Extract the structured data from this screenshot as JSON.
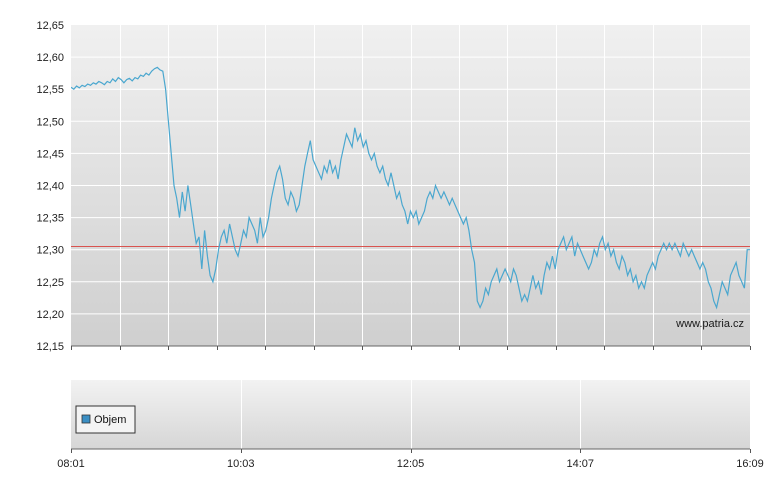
{
  "watermark": "www.patria.cz",
  "colors": {
    "price_line": "#4aa7cf",
    "reference_line": "#d9534f",
    "legend_swatch": "#3b8fc4",
    "grid": "#ffffff",
    "plot_bg_top": "#f0f0f0",
    "plot_bg_bottom": "#cfcfcf"
  },
  "chart_data": [
    {
      "type": "line",
      "name": "price",
      "title": "",
      "xlabel": "",
      "ylabel": "",
      "ylim": [
        12.15,
        12.65
      ],
      "yticks": [
        "12,65",
        "12,60",
        "12,55",
        "12,50",
        "12,45",
        "12,40",
        "12,35",
        "12,30",
        "12,25",
        "12,20",
        "12,15"
      ],
      "ytick_values": [
        12.65,
        12.6,
        12.55,
        12.5,
        12.45,
        12.4,
        12.35,
        12.3,
        12.25,
        12.2,
        12.15
      ],
      "reference_line": 12.305,
      "grid": true,
      "series": [
        {
          "values": [
            [
              0,
              12.553
            ],
            [
              2,
              12.55
            ],
            [
              4,
              12.555
            ],
            [
              6,
              12.552
            ],
            [
              8,
              12.556
            ],
            [
              10,
              12.554
            ],
            [
              12,
              12.558
            ],
            [
              14,
              12.556
            ],
            [
              16,
              12.56
            ],
            [
              18,
              12.558
            ],
            [
              20,
              12.562
            ],
            [
              22,
              12.56
            ],
            [
              24,
              12.557
            ],
            [
              26,
              12.562
            ],
            [
              28,
              12.56
            ],
            [
              30,
              12.566
            ],
            [
              32,
              12.562
            ],
            [
              34,
              12.568
            ],
            [
              36,
              12.565
            ],
            [
              38,
              12.56
            ],
            [
              40,
              12.565
            ],
            [
              42,
              12.567
            ],
            [
              44,
              12.563
            ],
            [
              46,
              12.568
            ],
            [
              48,
              12.566
            ],
            [
              50,
              12.572
            ],
            [
              52,
              12.57
            ],
            [
              54,
              12.575
            ],
            [
              56,
              12.572
            ],
            [
              58,
              12.578
            ],
            [
              60,
              12.582
            ],
            [
              62,
              12.584
            ],
            [
              64,
              12.58
            ],
            [
              66,
              12.578
            ],
            [
              68,
              12.55
            ],
            [
              70,
              12.5
            ],
            [
              72,
              12.45
            ],
            [
              74,
              12.4
            ],
            [
              76,
              12.38
            ],
            [
              78,
              12.35
            ],
            [
              80,
              12.39
            ],
            [
              82,
              12.36
            ],
            [
              84,
              12.4
            ],
            [
              86,
              12.37
            ],
            [
              88,
              12.34
            ],
            [
              90,
              12.31
            ],
            [
              92,
              12.32
            ],
            [
              94,
              12.27
            ],
            [
              96,
              12.33
            ],
            [
              98,
              12.29
            ],
            [
              100,
              12.26
            ],
            [
              102,
              12.25
            ],
            [
              104,
              12.27
            ],
            [
              106,
              12.3
            ],
            [
              108,
              12.32
            ],
            [
              110,
              12.33
            ],
            [
              112,
              12.31
            ],
            [
              114,
              12.34
            ],
            [
              116,
              12.32
            ],
            [
              118,
              12.3
            ],
            [
              120,
              12.29
            ],
            [
              122,
              12.31
            ],
            [
              124,
              12.33
            ],
            [
              126,
              12.32
            ],
            [
              128,
              12.35
            ],
            [
              130,
              12.34
            ],
            [
              132,
              12.33
            ],
            [
              134,
              12.31
            ],
            [
              136,
              12.35
            ],
            [
              138,
              12.32
            ],
            [
              140,
              12.33
            ],
            [
              142,
              12.35
            ],
            [
              144,
              12.38
            ],
            [
              146,
              12.4
            ],
            [
              148,
              12.42
            ],
            [
              150,
              12.43
            ],
            [
              152,
              12.41
            ],
            [
              154,
              12.38
            ],
            [
              156,
              12.37
            ],
            [
              158,
              12.39
            ],
            [
              160,
              12.38
            ],
            [
              162,
              12.36
            ],
            [
              164,
              12.37
            ],
            [
              166,
              12.4
            ],
            [
              168,
              12.43
            ],
            [
              170,
              12.45
            ],
            [
              172,
              12.47
            ],
            [
              174,
              12.44
            ],
            [
              176,
              12.43
            ],
            [
              178,
              12.42
            ],
            [
              180,
              12.41
            ],
            [
              182,
              12.43
            ],
            [
              184,
              12.42
            ],
            [
              186,
              12.44
            ],
            [
              188,
              12.42
            ],
            [
              190,
              12.43
            ],
            [
              192,
              12.41
            ],
            [
              194,
              12.44
            ],
            [
              196,
              12.46
            ],
            [
              198,
              12.48
            ],
            [
              200,
              12.47
            ],
            [
              202,
              12.46
            ],
            [
              204,
              12.49
            ],
            [
              206,
              12.47
            ],
            [
              208,
              12.48
            ],
            [
              210,
              12.46
            ],
            [
              212,
              12.47
            ],
            [
              214,
              12.45
            ],
            [
              216,
              12.44
            ],
            [
              218,
              12.45
            ],
            [
              220,
              12.43
            ],
            [
              222,
              12.42
            ],
            [
              224,
              12.43
            ],
            [
              226,
              12.41
            ],
            [
              228,
              12.4
            ],
            [
              230,
              12.42
            ],
            [
              232,
              12.4
            ],
            [
              234,
              12.38
            ],
            [
              236,
              12.39
            ],
            [
              238,
              12.37
            ],
            [
              240,
              12.36
            ],
            [
              242,
              12.34
            ],
            [
              244,
              12.36
            ],
            [
              246,
              12.35
            ],
            [
              248,
              12.36
            ],
            [
              250,
              12.34
            ],
            [
              252,
              12.35
            ],
            [
              254,
              12.36
            ],
            [
              256,
              12.38
            ],
            [
              258,
              12.39
            ],
            [
              260,
              12.38
            ],
            [
              262,
              12.4
            ],
            [
              264,
              12.39
            ],
            [
              266,
              12.38
            ],
            [
              268,
              12.39
            ],
            [
              270,
              12.38
            ],
            [
              272,
              12.37
            ],
            [
              274,
              12.38
            ],
            [
              276,
              12.37
            ],
            [
              278,
              12.36
            ],
            [
              280,
              12.35
            ],
            [
              282,
              12.34
            ],
            [
              284,
              12.35
            ],
            [
              286,
              12.33
            ],
            [
              288,
              12.3
            ],
            [
              290,
              12.28
            ],
            [
              292,
              12.22
            ],
            [
              294,
              12.21
            ],
            [
              296,
              12.22
            ],
            [
              298,
              12.24
            ],
            [
              300,
              12.23
            ],
            [
              302,
              12.25
            ],
            [
              304,
              12.26
            ],
            [
              306,
              12.27
            ],
            [
              308,
              12.25
            ],
            [
              310,
              12.26
            ],
            [
              312,
              12.27
            ],
            [
              314,
              12.26
            ],
            [
              316,
              12.25
            ],
            [
              318,
              12.27
            ],
            [
              320,
              12.26
            ],
            [
              322,
              12.24
            ],
            [
              324,
              12.22
            ],
            [
              326,
              12.23
            ],
            [
              328,
              12.22
            ],
            [
              330,
              12.24
            ],
            [
              332,
              12.26
            ],
            [
              334,
              12.24
            ],
            [
              336,
              12.25
            ],
            [
              338,
              12.23
            ],
            [
              340,
              12.26
            ],
            [
              342,
              12.28
            ],
            [
              344,
              12.27
            ],
            [
              346,
              12.29
            ],
            [
              348,
              12.27
            ],
            [
              350,
              12.3
            ],
            [
              352,
              12.31
            ],
            [
              354,
              12.32
            ],
            [
              356,
              12.3
            ],
            [
              358,
              12.31
            ],
            [
              360,
              12.32
            ],
            [
              362,
              12.29
            ],
            [
              364,
              12.31
            ],
            [
              366,
              12.3
            ],
            [
              368,
              12.29
            ],
            [
              370,
              12.28
            ],
            [
              372,
              12.27
            ],
            [
              374,
              12.28
            ],
            [
              376,
              12.3
            ],
            [
              378,
              12.29
            ],
            [
              380,
              12.31
            ],
            [
              382,
              12.32
            ],
            [
              384,
              12.3
            ],
            [
              386,
              12.31
            ],
            [
              388,
              12.29
            ],
            [
              390,
              12.3
            ],
            [
              392,
              12.28
            ],
            [
              394,
              12.27
            ],
            [
              396,
              12.29
            ],
            [
              398,
              12.28
            ],
            [
              400,
              12.26
            ],
            [
              402,
              12.27
            ],
            [
              404,
              12.25
            ],
            [
              406,
              12.26
            ],
            [
              408,
              12.24
            ],
            [
              410,
              12.25
            ],
            [
              412,
              12.24
            ],
            [
              414,
              12.26
            ],
            [
              416,
              12.27
            ],
            [
              418,
              12.28
            ],
            [
              420,
              12.27
            ],
            [
              422,
              12.29
            ],
            [
              424,
              12.3
            ],
            [
              426,
              12.31
            ],
            [
              428,
              12.3
            ],
            [
              430,
              12.31
            ],
            [
              432,
              12.3
            ],
            [
              434,
              12.31
            ],
            [
              436,
              12.3
            ],
            [
              438,
              12.29
            ],
            [
              440,
              12.31
            ],
            [
              442,
              12.3
            ],
            [
              444,
              12.29
            ],
            [
              446,
              12.3
            ],
            [
              448,
              12.29
            ],
            [
              450,
              12.28
            ],
            [
              452,
              12.27
            ],
            [
              454,
              12.28
            ],
            [
              456,
              12.27
            ],
            [
              458,
              12.25
            ],
            [
              460,
              12.24
            ],
            [
              462,
              12.22
            ],
            [
              464,
              12.21
            ],
            [
              466,
              12.23
            ],
            [
              468,
              12.25
            ],
            [
              470,
              12.24
            ],
            [
              472,
              12.23
            ],
            [
              474,
              12.26
            ],
            [
              476,
              12.27
            ],
            [
              478,
              12.28
            ],
            [
              480,
              12.26
            ],
            [
              482,
              12.25
            ],
            [
              484,
              12.24
            ],
            [
              486,
              12.3
            ],
            [
              488,
              12.3
            ]
          ]
        }
      ]
    },
    {
      "type": "bar",
      "name": "volume",
      "legend": [
        {
          "label": "Objem",
          "color": "#3b8fc4"
        }
      ],
      "legend_position": "bottom-left",
      "values": []
    }
  ],
  "x_axis": {
    "labels": [
      "08:01",
      "10:03",
      "12:05",
      "14:07",
      "16:09"
    ],
    "label_values": [
      0,
      122,
      244,
      366,
      488
    ],
    "tick_values": [
      0,
      34.9,
      69.7,
      104.6,
      139.4,
      174.3,
      209.1,
      244,
      278.9,
      313.7,
      348.6,
      383.4,
      418.3,
      453.1,
      488
    ]
  }
}
